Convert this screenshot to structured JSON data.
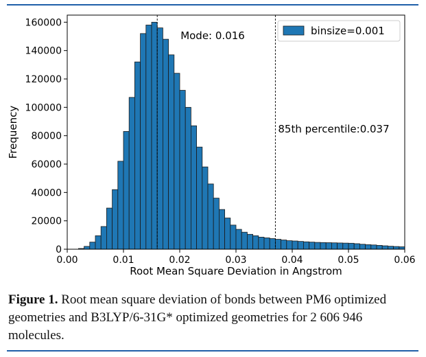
{
  "chart_data": {
    "type": "bar",
    "xlabel": "Root Mean Square Deviation in Angstrom",
    "ylabel": "Frequency",
    "xlim": [
      0.0,
      0.06
    ],
    "ylim": [
      0,
      165000
    ],
    "x_ticks": [
      "0.00",
      "0.01",
      "0.02",
      "0.03",
      "0.04",
      "0.05",
      "0.06"
    ],
    "y_ticks": [
      "0",
      "20000",
      "40000",
      "60000",
      "80000",
      "100000",
      "120000",
      "140000",
      "160000"
    ],
    "bin_start": 0.0,
    "bin_width": 0.001,
    "values": [
      0,
      0,
      500,
      2000,
      5000,
      9500,
      16000,
      29000,
      42000,
      62000,
      83000,
      107000,
      132000,
      152000,
      158000,
      160000,
      156000,
      148000,
      137000,
      124000,
      112000,
      100000,
      87000,
      72000,
      58000,
      46000,
      36000,
      28000,
      22000,
      17000,
      14000,
      12000,
      10500,
      9500,
      8500,
      8000,
      7500,
      7000,
      6500,
      6000,
      5800,
      5500,
      5200,
      5000,
      4800,
      4700,
      4600,
      4500,
      4400,
      4300,
      4200,
      3900,
      3500,
      3200,
      3000,
      2700,
      2400,
      2100,
      1900,
      1700
    ],
    "color": "#1f77b4",
    "edge_color": "#1a1a1a",
    "legend": {
      "label": "binsize=0.001",
      "position": "top-right"
    },
    "annotations": [
      {
        "x": 0.016,
        "text": "Mode: 0.016"
      },
      {
        "x": 0.037,
        "text": "85th percentile:0.037"
      }
    ]
  },
  "caption": {
    "label": "Figure 1.",
    "text": "Root mean square deviation of bonds between PM6 optimized geometries and B3LYP/6-31G* optimized geometries for 2 606 946 molecules."
  }
}
